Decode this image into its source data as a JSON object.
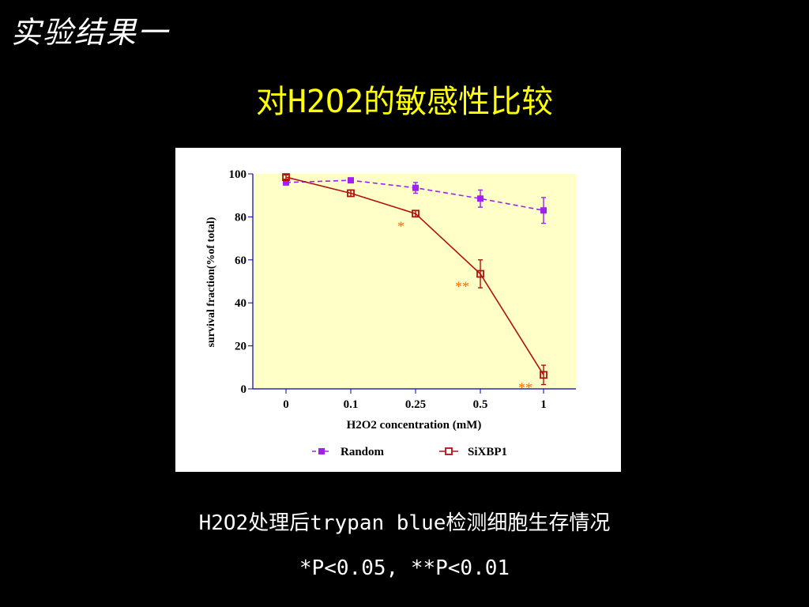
{
  "slide": {
    "corner_title": "实验结果一",
    "title": "对H2O2的敏感性比较",
    "caption": "H2O2处理后trypan blue检测细胞生存情况",
    "significance_note": "*P<0.05, **P<0.01"
  },
  "colors": {
    "background": "#000000",
    "title": "#ffff00",
    "plot_bg": "#ffffc8",
    "axis": "#0000aa",
    "random": "#a020f0",
    "sixbp1": "#b01010",
    "star": "#ff6a00"
  },
  "chart_data": {
    "type": "line",
    "xlabel": "H2O2 concentration (mM)",
    "ylabel": "survival fraction(%of total)",
    "categories": [
      "0",
      "0.1",
      "0.25",
      "0.5",
      "1"
    ],
    "ylim": [
      0,
      100
    ],
    "yticks": [
      0,
      20,
      40,
      60,
      80,
      100
    ],
    "grid": false,
    "legend_position": "bottom",
    "series": [
      {
        "name": "Random",
        "values": [
          96,
          97,
          93.5,
          88.5,
          83
        ],
        "errors": [
          1,
          1,
          2.5,
          4,
          6
        ],
        "style": "dashed",
        "marker": "filled-square",
        "color": "#a020f0"
      },
      {
        "name": "SiXBP1",
        "values": [
          98.5,
          91,
          81.5,
          53.5,
          6.5
        ],
        "errors": [
          1,
          1.5,
          1.5,
          6.5,
          4.5
        ],
        "style": "solid",
        "marker": "open-square",
        "color": "#b01010"
      }
    ],
    "annotations": [
      {
        "category": "0.25",
        "text": "*"
      },
      {
        "category": "0.5",
        "text": "**"
      },
      {
        "category": "1",
        "text": "**"
      }
    ]
  }
}
